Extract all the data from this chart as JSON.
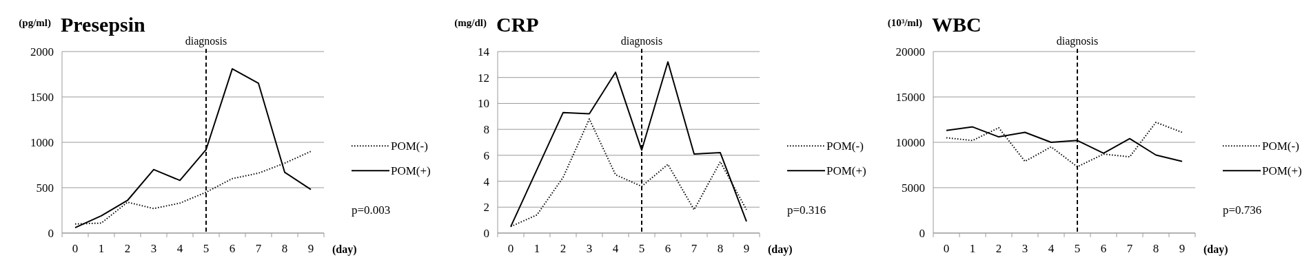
{
  "chart_data": [
    {
      "type": "line",
      "title": "Presepsin",
      "ylabel": "(pg/ml)",
      "xlabel": "(day)",
      "categories": [
        "0",
        "1",
        "2",
        "3",
        "4",
        "5",
        "6",
        "7",
        "8",
        "9"
      ],
      "series": [
        {
          "name": "POM(-)",
          "color": "#000000",
          "line_style": "dotted",
          "values": [
            100,
            110,
            340,
            270,
            330,
            450,
            600,
            660,
            770,
            900
          ]
        },
        {
          "name": "POM(+)",
          "color": "#000000",
          "line_style": "solid",
          "values": [
            60,
            190,
            360,
            700,
            580,
            920,
            1810,
            1650,
            670,
            480
          ]
        }
      ],
      "ylim": [
        0,
        2000
      ],
      "yticks": [
        0,
        500,
        1000,
        1500,
        2000
      ],
      "grid": "y",
      "legend": "right",
      "marker": "none",
      "ref_lines": [
        {
          "axis": "x",
          "value": "5",
          "label": "diagnosis",
          "line_style": "dashed",
          "color": "#000000"
        }
      ],
      "annotations": [
        "p=0.003"
      ]
    },
    {
      "type": "line",
      "title": "CRP",
      "ylabel": "(mg/dl)",
      "xlabel": "(day)",
      "categories": [
        "0",
        "1",
        "2",
        "3",
        "4",
        "5",
        "6",
        "7",
        "8",
        "9"
      ],
      "series": [
        {
          "name": "POM(-)",
          "color": "#000000",
          "line_style": "dotted",
          "values": [
            0.5,
            1.4,
            4.3,
            8.8,
            4.5,
            3.6,
            5.3,
            1.8,
            5.5,
            1.8
          ]
        },
        {
          "name": "POM(+)",
          "color": "#000000",
          "line_style": "solid",
          "values": [
            0.5,
            4.9,
            9.3,
            9.2,
            12.4,
            6.4,
            13.2,
            6.1,
            6.2,
            0.9
          ]
        }
      ],
      "ylim": [
        0,
        14
      ],
      "yticks": [
        0,
        2,
        4,
        6,
        8,
        10,
        12,
        14
      ],
      "grid": "y",
      "legend": "right",
      "marker": "none",
      "ref_lines": [
        {
          "axis": "x",
          "value": "5",
          "label": "diagnosis",
          "line_style": "dashed",
          "color": "#000000"
        }
      ],
      "annotations": [
        "p=0.316"
      ]
    },
    {
      "type": "line",
      "title": "WBC",
      "ylabel": "(10³/ml)",
      "xlabel": "(day)",
      "categories": [
        "0",
        "1",
        "2",
        "3",
        "4",
        "5",
        "6",
        "7",
        "8",
        "9"
      ],
      "series": [
        {
          "name": "POM(-)",
          "color": "#000000",
          "line_style": "dotted",
          "values": [
            10500,
            10200,
            11600,
            7900,
            9500,
            7300,
            8700,
            8400,
            12200,
            11100
          ]
        },
        {
          "name": "POM(+)",
          "color": "#000000",
          "line_style": "solid",
          "values": [
            11300,
            11700,
            10600,
            11100,
            10000,
            10200,
            8800,
            10400,
            8600,
            7900
          ]
        }
      ],
      "ylim": [
        0,
        20000
      ],
      "yticks": [
        0,
        5000,
        10000,
        15000,
        20000
      ],
      "grid": "y",
      "legend": "right",
      "marker": "none",
      "ref_lines": [
        {
          "axis": "x",
          "value": "5",
          "label": "diagnosis",
          "line_style": "dashed",
          "color": "#000000"
        }
      ],
      "annotations": [
        "p=0.736"
      ]
    }
  ]
}
